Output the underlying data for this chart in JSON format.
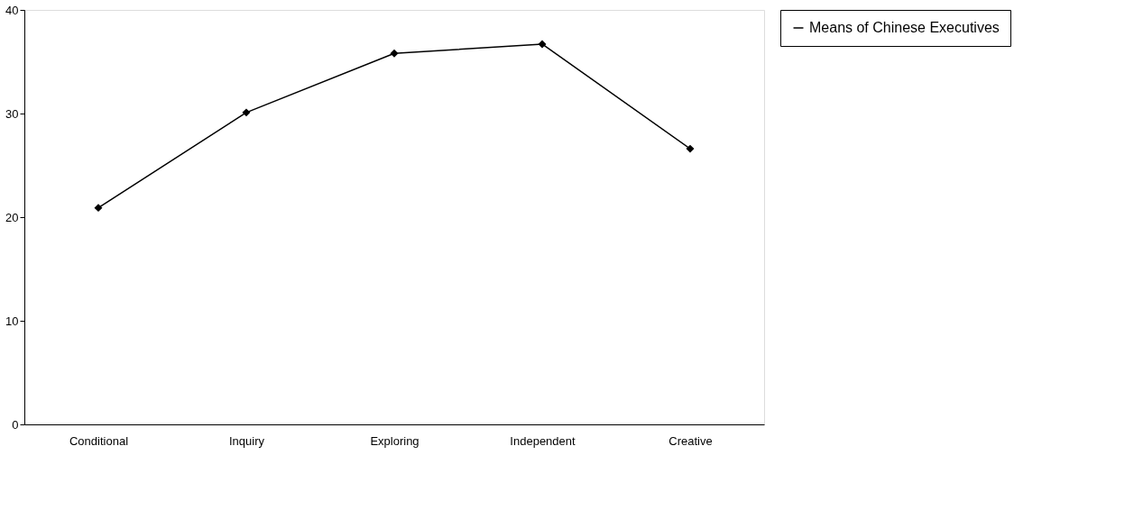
{
  "chart_data": {
    "type": "line",
    "categories": [
      "Conditional",
      "Inquiry",
      "Exploring",
      "Independent",
      "Creative"
    ],
    "series": [
      {
        "name": "Means of Chinese Executives",
        "color": "#000000",
        "values": [
          20.9,
          30.1,
          35.8,
          36.7,
          26.6
        ]
      }
    ],
    "ylim": [
      0,
      40
    ],
    "yticks": [
      0,
      10,
      20,
      30,
      40
    ],
    "grid": false,
    "legend": "right",
    "marker": "diamond",
    "line_style": "solid"
  }
}
